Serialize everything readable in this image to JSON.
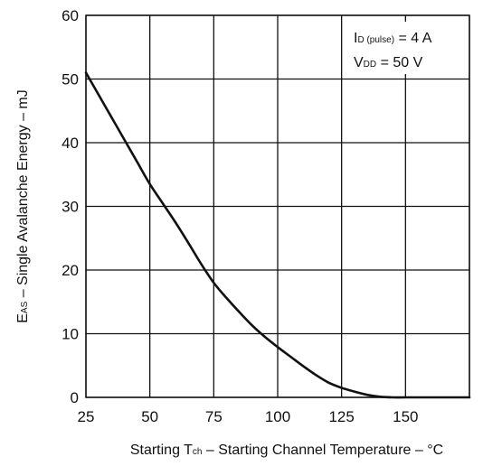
{
  "chart_data": {
    "type": "line",
    "xlabel": {
      "prefix": "Starting T",
      "sub": "ch",
      "suffix": " – Starting Channel Temperature – °C"
    },
    "ylabel": {
      "prefix": "E",
      "sub": "AS",
      "suffix": " – Single Avalanche Energy – mJ"
    },
    "xlim": [
      25,
      175
    ],
    "ylim": [
      0,
      60
    ],
    "xticks": [
      25,
      50,
      75,
      100,
      125,
      150
    ],
    "yticks": [
      0,
      10,
      20,
      30,
      40,
      50,
      60
    ],
    "grid": true,
    "annotations": [
      {
        "prefix": "I",
        "sub": "D (pulse)",
        "suffix": " = 4 A"
      },
      {
        "prefix": "V",
        "sub": "DD",
        "suffix": " = 50 V"
      }
    ],
    "series": [
      {
        "x": [
          25,
          30,
          35,
          40,
          45,
          50,
          55,
          60,
          65,
          70,
          75,
          80,
          85,
          90,
          95,
          100,
          105,
          110,
          115,
          120,
          125,
          130,
          135,
          140,
          145,
          150,
          160,
          175
        ],
        "y": [
          51,
          47.5,
          44,
          40.5,
          37,
          33.5,
          30.5,
          27.5,
          24.3,
          21,
          18,
          15.6,
          13.4,
          11.3,
          9.5,
          7.9,
          6.4,
          4.9,
          3.5,
          2.3,
          1.5,
          0.9,
          0.4,
          0.1,
          0,
          0,
          0,
          0
        ]
      }
    ]
  }
}
